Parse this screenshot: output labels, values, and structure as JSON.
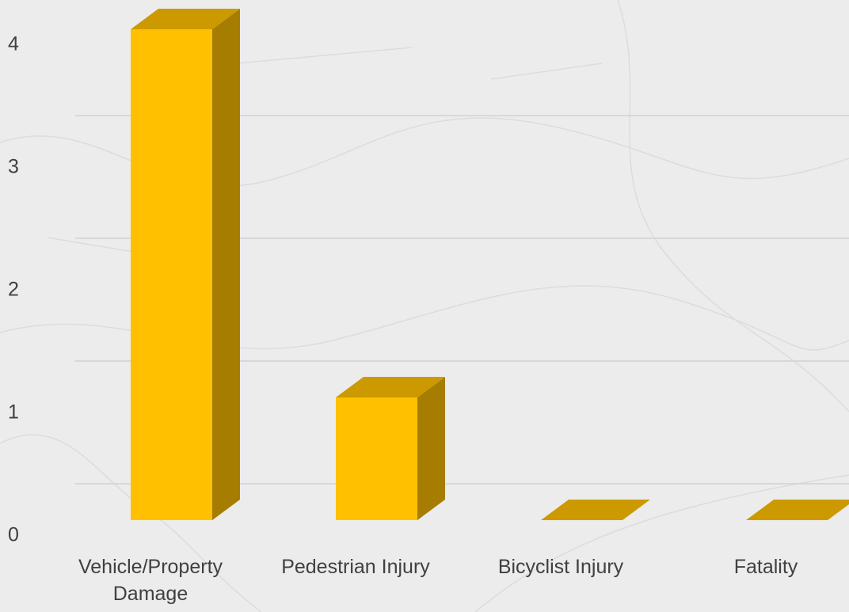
{
  "chart_data": {
    "type": "bar3d",
    "categories": [
      "Vehicle/Property Damage",
      "Pedestrian Injury",
      "Bicyclist Injury",
      "Fatality"
    ],
    "values": [
      4,
      1,
      0,
      0
    ],
    "color": "#ffc000",
    "ylim": [
      0,
      4
    ],
    "yticks": [
      0,
      1,
      2,
      3,
      4
    ],
    "grid": true
  }
}
